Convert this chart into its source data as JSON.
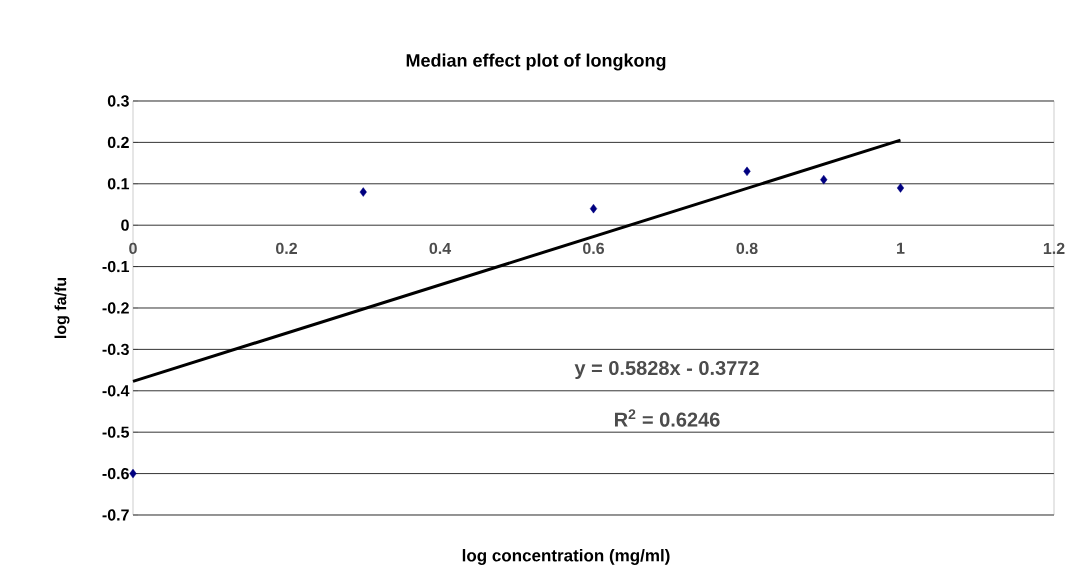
{
  "chart_data": {
    "type": "scatter",
    "title": "Median effect plot of longkong",
    "xlabel": "log concentration (mg/ml)",
    "ylabel": "log fa/fu",
    "series": [
      {
        "color": "#000080",
        "x": [
          0,
          0.3,
          0.6,
          0.8,
          0.9,
          1
        ],
        "values": [
          -0.6,
          0.08,
          0.04,
          0.13,
          0.11,
          0.09
        ],
        "marker": "diamond"
      },
      {
        "type": "line",
        "color": "#000000",
        "x": [
          0,
          1
        ],
        "values": [
          -0.3772,
          0.2056
        ],
        "marker": "none"
      }
    ],
    "xlim": [
      0,
      1.2
    ],
    "xticks": [
      0,
      0.2,
      0.4,
      0.6,
      0.8,
      1,
      1.2
    ],
    "ylim": [
      -0.7,
      0.3
    ],
    "yticks": [
      -0.7,
      -0.6,
      -0.5,
      -0.4,
      -0.3,
      -0.2,
      -0.1,
      0,
      0.1,
      0.2,
      0.3
    ],
    "grid": "y",
    "annotations": [
      "y = 0.5828x - 0.3772",
      "R$^{2}$ = 0.6246"
    ]
  }
}
